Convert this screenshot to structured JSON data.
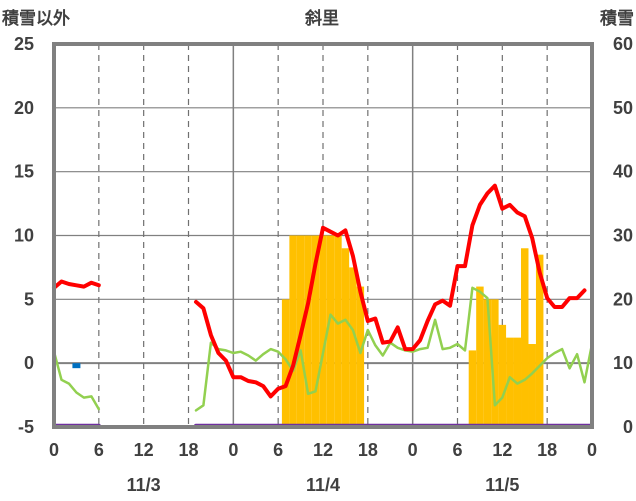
{
  "chart_data": {
    "type": "bar+line",
    "title": "斜里",
    "left_axis_label": "積雪以外",
    "right_axis_label": "積雪",
    "left_ylim": [
      -5,
      25
    ],
    "left_ticks": [
      -5,
      0,
      5,
      10,
      15,
      20,
      25
    ],
    "right_ylim": [
      0,
      60
    ],
    "right_ticks": [
      0,
      10,
      20,
      30,
      40,
      50,
      60
    ],
    "xlim_hours": [
      0,
      72
    ],
    "x_ticks": [
      {
        "h": 0,
        "label": "0"
      },
      {
        "h": 6,
        "label": "6"
      },
      {
        "h": 12,
        "label": "12"
      },
      {
        "h": 18,
        "label": "18"
      },
      {
        "h": 24,
        "label": "0"
      },
      {
        "h": 30,
        "label": "6"
      },
      {
        "h": 36,
        "label": "12"
      },
      {
        "h": 42,
        "label": "18"
      },
      {
        "h": 48,
        "label": "0"
      },
      {
        "h": 54,
        "label": "6"
      },
      {
        "h": 60,
        "label": "12"
      },
      {
        "h": 66,
        "label": "18"
      },
      {
        "h": 72,
        "label": "0"
      }
    ],
    "day_labels": [
      {
        "h": 12,
        "label": "11/3"
      },
      {
        "h": 36,
        "label": "11/4"
      },
      {
        "h": 60,
        "label": "11/5"
      }
    ],
    "grid": "dashed at 6 and 18 o'clock, solid at day boundaries and horizontal values",
    "colors": {
      "temperature": "#ff0000",
      "dewpoint": "#92d050",
      "snow_depth": "#ffc000",
      "precip": "#0070c0",
      "wind": "#7030a0",
      "grid": "#808080"
    },
    "series": [
      {
        "name": "temperature",
        "axis": "left",
        "style": "line",
        "segments": [
          [
            [
              0,
              5.9
            ],
            [
              1,
              6.4
            ],
            [
              2,
              6.2
            ],
            [
              3,
              6.1
            ],
            [
              4,
              6.0
            ],
            [
              5,
              6.3
            ],
            [
              6,
              6.1
            ]
          ],
          [
            [
              19,
              4.8
            ],
            [
              20,
              4.3
            ],
            [
              21,
              2.2
            ],
            [
              22,
              0.8
            ],
            [
              23,
              0.2
            ],
            [
              24,
              -1.1
            ],
            [
              25,
              -1.1
            ],
            [
              26,
              -1.4
            ],
            [
              27,
              -1.5
            ],
            [
              28,
              -1.8
            ],
            [
              29,
              -2.6
            ],
            [
              30,
              -2.0
            ],
            [
              31,
              -1.8
            ],
            [
              32,
              -0.2
            ],
            [
              33,
              2.2
            ],
            [
              34,
              4.7
            ],
            [
              35,
              7.8
            ],
            [
              36,
              10.6
            ],
            [
              37,
              10.3
            ],
            [
              38,
              10.0
            ],
            [
              39,
              10.4
            ],
            [
              40,
              8.4
            ],
            [
              41,
              5.6
            ],
            [
              42,
              3.3
            ],
            [
              43,
              3.5
            ],
            [
              44,
              1.6
            ],
            [
              45,
              1.7
            ],
            [
              46,
              2.8
            ],
            [
              47,
              1.1
            ],
            [
              48,
              1.1
            ],
            [
              49,
              1.8
            ],
            [
              50,
              3.3
            ],
            [
              51,
              4.6
            ],
            [
              52,
              4.9
            ],
            [
              53,
              4.5
            ],
            [
              54,
              7.6
            ],
            [
              55,
              7.6
            ],
            [
              56,
              10.8
            ],
            [
              57,
              12.4
            ],
            [
              58,
              13.3
            ],
            [
              59,
              13.9
            ],
            [
              60,
              12.1
            ],
            [
              61,
              12.4
            ],
            [
              62,
              11.8
            ],
            [
              63,
              11.5
            ],
            [
              64,
              9.8
            ],
            [
              65,
              7.1
            ],
            [
              66,
              5.1
            ],
            [
              67,
              4.4
            ],
            [
              68,
              4.4
            ],
            [
              69,
              5.1
            ],
            [
              70,
              5.1
            ],
            [
              71,
              5.7
            ]
          ]
        ]
      },
      {
        "name": "dewpoint",
        "axis": "left",
        "style": "line",
        "segments": [
          [
            [
              0,
              0.9
            ],
            [
              1,
              -1.3
            ],
            [
              2,
              -1.6
            ],
            [
              3,
              -2.3
            ],
            [
              4,
              -2.7
            ],
            [
              5,
              -2.6
            ],
            [
              6,
              -3.6
            ]
          ],
          [
            [
              19,
              -3.7
            ],
            [
              20,
              -3.3
            ],
            [
              21,
              1.6
            ],
            [
              22,
              1.1
            ],
            [
              23,
              1.0
            ],
            [
              24,
              0.8
            ],
            [
              25,
              0.9
            ],
            [
              26,
              0.6
            ],
            [
              27,
              0.2
            ],
            [
              28,
              0.7
            ],
            [
              29,
              1.1
            ],
            [
              30,
              0.9
            ],
            [
              31,
              0.3
            ],
            [
              32,
              -0.6
            ],
            [
              33,
              1.0
            ],
            [
              34,
              -2.4
            ],
            [
              35,
              -2.2
            ],
            [
              36,
              0.8
            ],
            [
              37,
              3.8
            ],
            [
              38,
              3.1
            ],
            [
              39,
              3.4
            ],
            [
              40,
              2.6
            ],
            [
              41,
              0.8
            ],
            [
              42,
              2.6
            ],
            [
              43,
              1.4
            ],
            [
              44,
              0.6
            ],
            [
              45,
              1.6
            ],
            [
              46,
              1.2
            ],
            [
              47,
              1.0
            ],
            [
              48,
              0.9
            ],
            [
              49,
              1.1
            ],
            [
              50,
              1.2
            ],
            [
              51,
              3.4
            ],
            [
              52,
              1.1
            ],
            [
              53,
              1.2
            ],
            [
              54,
              1.5
            ],
            [
              55,
              1.0
            ],
            [
              56,
              5.9
            ],
            [
              57,
              5.6
            ],
            [
              58,
              5.1
            ],
            [
              59,
              -3.3
            ],
            [
              60,
              -2.7
            ],
            [
              61,
              -1.1
            ],
            [
              62,
              -1.6
            ],
            [
              63,
              -1.3
            ],
            [
              64,
              -0.8
            ],
            [
              65,
              -0.2
            ],
            [
              66,
              0.4
            ],
            [
              67,
              0.8
            ],
            [
              68,
              1.1
            ],
            [
              69,
              -0.4
            ],
            [
              70,
              0.7
            ],
            [
              71,
              -1.5
            ],
            [
              72,
              1.5
            ]
          ]
        ]
      },
      {
        "name": "snow_depth",
        "axis": "right",
        "style": "bar",
        "values": [
          [
            31,
            20
          ],
          [
            32,
            30
          ],
          [
            33,
            30
          ],
          [
            34,
            30
          ],
          [
            35,
            30
          ],
          [
            36,
            30
          ],
          [
            37,
            30
          ],
          [
            38,
            30
          ],
          [
            39,
            28
          ],
          [
            40,
            25
          ],
          [
            41,
            22
          ],
          [
            56,
            12
          ],
          [
            57,
            22
          ],
          [
            58,
            20
          ],
          [
            59,
            20
          ],
          [
            60,
            16
          ],
          [
            61,
            14
          ],
          [
            62,
            14
          ],
          [
            63,
            28
          ],
          [
            64,
            13
          ],
          [
            65,
            27
          ]
        ]
      },
      {
        "name": "precip",
        "axis": "left",
        "style": "bar",
        "values": [
          [
            3,
            -0.3
          ]
        ]
      },
      {
        "name": "wind",
        "axis": "left",
        "style": "line",
        "segments": [
          [
            [
              0,
              -4.9
            ],
            [
              6,
              -4.9
            ]
          ],
          [
            [
              19,
              -4.9
            ],
            [
              72,
              -4.9
            ]
          ]
        ]
      }
    ]
  }
}
